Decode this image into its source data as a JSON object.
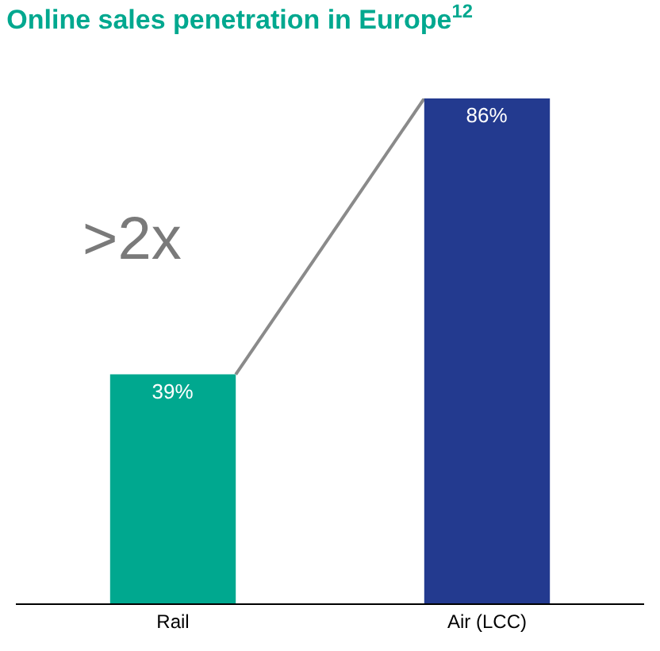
{
  "chart_data": {
    "type": "bar",
    "title": "Online sales penetration in Europe$^{12}$",
    "categories": [
      "Rail",
      "Air (LCC)"
    ],
    "values": [
      39,
      86
    ],
    "colors": [
      "#00a88f",
      "#233a8f"
    ],
    "value_labels": [
      "39%",
      "86%"
    ],
    "annotations": [
      ">2x"
    ]
  }
}
